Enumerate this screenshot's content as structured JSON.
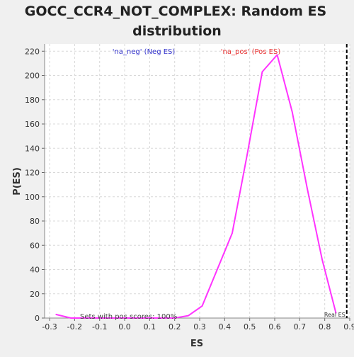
{
  "chart_data": {
    "type": "line",
    "title_lines": [
      "GOCC_CCR4_NOT_COMPLEX: Random ES",
      "distribution"
    ],
    "xlabel": "ES",
    "ylabel": "P(ES)",
    "xlim": [
      -0.32,
      0.9
    ],
    "ylim": [
      0,
      226
    ],
    "xticks": [
      "-0.3",
      "-0.2",
      "-0.1",
      "0.0",
      "0.1",
      "0.2",
      "0.3",
      "0.4",
      "0.5",
      "0.6",
      "0.7",
      "0.8",
      "0.9"
    ],
    "yticks": [
      "0",
      "20",
      "40",
      "60",
      "80",
      "100",
      "120",
      "140",
      "160",
      "180",
      "200",
      "220"
    ],
    "grid": true,
    "series": [
      {
        "color": "#ff33ff",
        "x": [
          -0.275,
          -0.215,
          -0.155,
          -0.095,
          -0.035,
          0.025,
          0.085,
          0.145,
          0.2,
          0.255,
          0.31,
          0.43,
          0.49,
          0.55,
          0.61,
          0.67,
          0.73,
          0.79,
          0.845
        ],
        "y": [
          3,
          0,
          0,
          0,
          0,
          0,
          0,
          0,
          0,
          2,
          10,
          70,
          135,
          203,
          217,
          170,
          107,
          48,
          4
        ]
      }
    ],
    "annotations": {
      "neg_label": "'na_neg' (Neg ES)",
      "pos_label": "'na_pos' (Pos ES)",
      "sets_text": "Sets with pos scores: 100%",
      "real_es_label": "Real ES",
      "real_es_x": 0.888
    },
    "colors": {
      "neg": "#3333cc",
      "pos": "#e83030",
      "curve": "#ff33ff",
      "background": "#ffffff",
      "frame": "#f0f0f0"
    }
  }
}
